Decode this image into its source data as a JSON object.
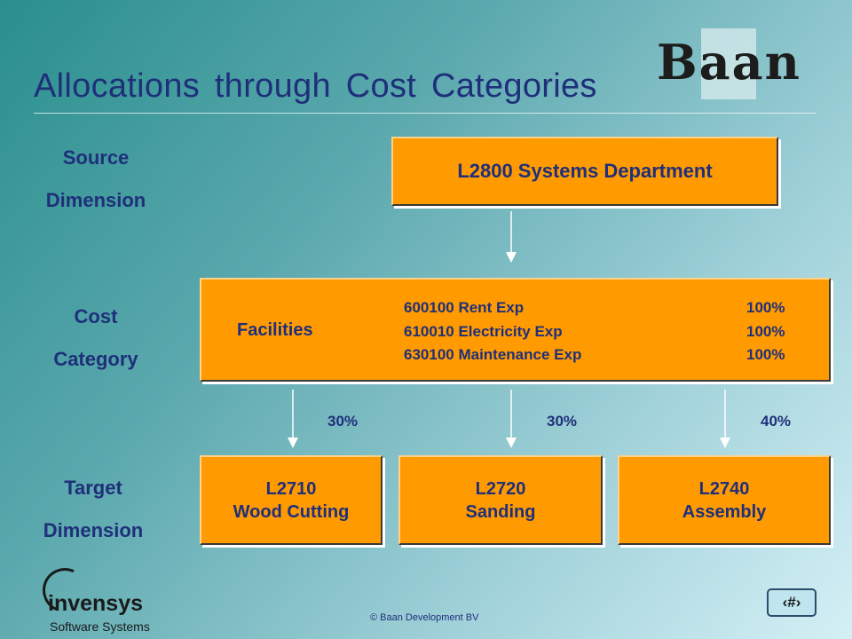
{
  "title": "Allocations through Cost Categories",
  "logo": {
    "brand": "Baan"
  },
  "labels": {
    "source": [
      "Source",
      "Dimension"
    ],
    "cost": [
      "Cost",
      "Category"
    ],
    "target": [
      "Target",
      "Dimension"
    ]
  },
  "source_box": "L2800 Systems Department",
  "cost_category": {
    "name": "Facilities",
    "rows": [
      {
        "account": "600100 Rent Exp",
        "pct": "100%"
      },
      {
        "account": "610010 Electricity Exp",
        "pct": "100%"
      },
      {
        "account": "630100 Maintenance Exp",
        "pct": "100%"
      }
    ]
  },
  "allocations": [
    "30%",
    "30%",
    "40%"
  ],
  "targets": [
    {
      "code": "L2710",
      "name": "Wood Cutting"
    },
    {
      "code": "L2720",
      "name": "Sanding"
    },
    {
      "code": "L2740",
      "name": "Assembly"
    }
  ],
  "footer": {
    "company": "invensys",
    "company_sub": "Software Systems",
    "copyright": "© Baan Development BV",
    "page_glyph": "‹#›"
  },
  "colors": {
    "box": "#ff9a00",
    "text": "#1f2f7a"
  }
}
